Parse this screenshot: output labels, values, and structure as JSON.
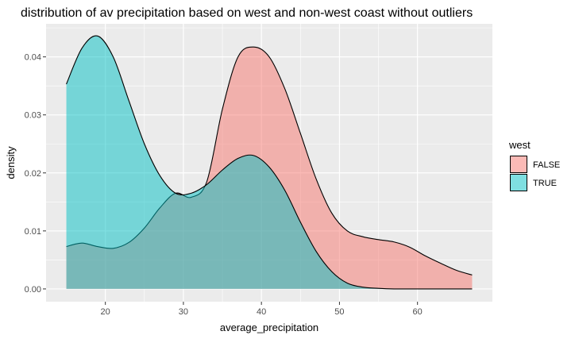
{
  "chart_data": {
    "type": "area",
    "title": "distribution of av precipitation based on west and non-west coast without outliers",
    "xlabel": "average_precipitation",
    "ylabel": "density",
    "xlim": [
      12.4,
      69.6
    ],
    "ylim": [
      -0.0022,
      0.0457
    ],
    "x_ticks": [
      20,
      30,
      40,
      50,
      60
    ],
    "y_ticks": [
      0.0,
      0.01,
      0.02,
      0.03,
      0.04
    ],
    "y_tick_labels": [
      "0.00",
      "0.01",
      "0.02",
      "0.03",
      "0.04"
    ],
    "grid": true,
    "legend_position": "right",
    "legend_title": "west",
    "series": [
      {
        "name": "FALSE",
        "color": "#F8766D",
        "x": [
          15,
          17,
          19,
          21,
          23,
          25,
          27,
          29,
          31,
          33,
          35,
          37,
          39,
          41,
          43,
          45,
          47,
          49,
          51,
          53,
          55,
          57,
          59,
          61,
          63,
          65,
          67
        ],
        "y": [
          0.0073,
          0.0079,
          0.0073,
          0.007,
          0.008,
          0.0105,
          0.014,
          0.0165,
          0.0158,
          0.0185,
          0.031,
          0.04,
          0.0417,
          0.04,
          0.0345,
          0.0268,
          0.019,
          0.0131,
          0.01,
          0.009,
          0.0085,
          0.0081,
          0.0072,
          0.0057,
          0.0044,
          0.0032,
          0.0024
        ]
      },
      {
        "name": "TRUE",
        "color": "#00BFC4",
        "x": [
          15,
          17,
          19,
          21,
          23,
          25,
          27,
          29,
          31,
          33,
          35,
          37,
          39,
          41,
          43,
          45,
          47,
          49,
          51,
          53,
          55,
          57,
          59,
          61,
          63,
          65,
          67
        ],
        "y": [
          0.0353,
          0.0415,
          0.0436,
          0.04,
          0.0325,
          0.025,
          0.0195,
          0.0165,
          0.0165,
          0.018,
          0.0205,
          0.0225,
          0.023,
          0.021,
          0.017,
          0.0115,
          0.0065,
          0.003,
          0.001,
          0.0003,
          0.0001,
          0.0,
          0.0,
          0.0,
          0.0,
          0.0,
          0.0
        ]
      }
    ]
  }
}
